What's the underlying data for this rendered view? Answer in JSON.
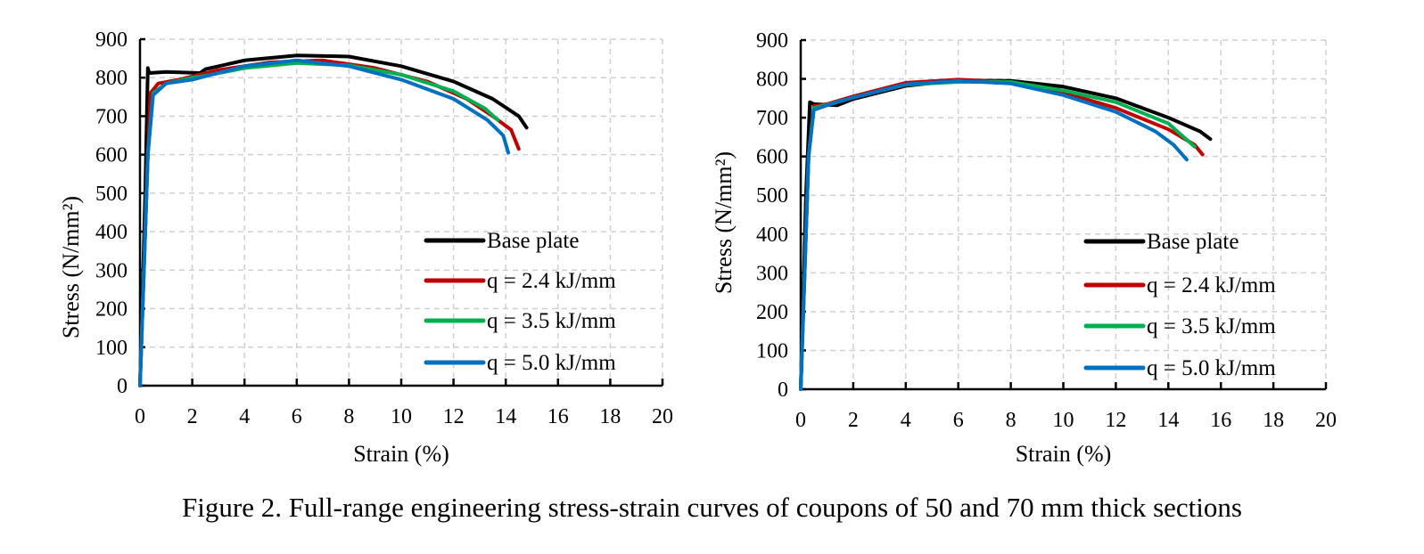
{
  "caption": "Figure 2. Full-range engineering stress-strain curves of coupons of 50 and 70 mm thick sections",
  "chart_data": [
    {
      "type": "line",
      "xlabel": "Strain (%)",
      "ylabel": "Stress (N/mm²)",
      "xlim": [
        0,
        20
      ],
      "ylim": [
        0,
        900
      ],
      "xticks": [
        "0",
        "2",
        "4",
        "6",
        "8",
        "10",
        "12",
        "14",
        "16",
        "18",
        "20"
      ],
      "yticks": [
        "0",
        "100",
        "200",
        "300",
        "400",
        "500",
        "600",
        "700",
        "800",
        "900"
      ],
      "grid": true,
      "legend_position": "bottom-right",
      "series": [
        {
          "name": "Base plate",
          "color": "#000000",
          "points": [
            [
              0,
              0
            ],
            [
              0.2,
              500
            ],
            [
              0.3,
              825
            ],
            [
              0.35,
              812
            ],
            [
              1,
              815
            ],
            [
              2.3,
              812
            ],
            [
              2.5,
              822
            ],
            [
              4,
              845
            ],
            [
              6,
              858
            ],
            [
              8,
              855
            ],
            [
              10,
              830
            ],
            [
              12,
              790
            ],
            [
              13.5,
              745
            ],
            [
              14.5,
              700
            ],
            [
              14.8,
              670
            ]
          ]
        },
        {
          "name": "q = 2.4 kJ/mm",
          "color": "#c00000",
          "points": [
            [
              0,
              0
            ],
            [
              0.3,
              600
            ],
            [
              0.4,
              760
            ],
            [
              0.7,
              785
            ],
            [
              1.5,
              795
            ],
            [
              3,
              820
            ],
            [
              5,
              840
            ],
            [
              7,
              845
            ],
            [
              9,
              825
            ],
            [
              11,
              790
            ],
            [
              12.5,
              745
            ],
            [
              13.5,
              700
            ],
            [
              14.2,
              665
            ],
            [
              14.5,
              615
            ]
          ]
        },
        {
          "name": "q = 3.5 kJ/mm",
          "color": "#00b050",
          "points": [
            [
              0,
              0
            ],
            [
              0.3,
              600
            ],
            [
              0.5,
              760
            ],
            [
              1,
              785
            ],
            [
              2,
              800
            ],
            [
              2.5,
              805
            ],
            [
              4,
              825
            ],
            [
              6,
              838
            ],
            [
              8,
              832
            ],
            [
              10,
              808
            ],
            [
              12,
              765
            ],
            [
              13.2,
              720
            ],
            [
              13.7,
              690
            ]
          ]
        },
        {
          "name": "q = 5.0 kJ/mm",
          "color": "#0070c0",
          "points": [
            [
              0,
              0
            ],
            [
              0.3,
              600
            ],
            [
              0.5,
              755
            ],
            [
              1,
              785
            ],
            [
              2,
              795
            ],
            [
              4,
              830
            ],
            [
              6,
              845
            ],
            [
              8,
              830
            ],
            [
              10,
              795
            ],
            [
              12,
              745
            ],
            [
              13.3,
              690
            ],
            [
              13.9,
              650
            ],
            [
              14.1,
              605
            ]
          ]
        }
      ]
    },
    {
      "type": "line",
      "xlabel": "Strain (%)",
      "ylabel": "Stress (N/mm²)",
      "xlim": [
        0,
        20
      ],
      "ylim": [
        0,
        900
      ],
      "xticks": [
        "0",
        "2",
        "4",
        "6",
        "8",
        "10",
        "12",
        "14",
        "16",
        "18",
        "20"
      ],
      "yticks": [
        "0",
        "100",
        "200",
        "300",
        "400",
        "500",
        "600",
        "700",
        "800",
        "900"
      ],
      "grid": true,
      "legend_position": "bottom-right",
      "series": [
        {
          "name": "Base plate",
          "color": "#000000",
          "points": [
            [
              0,
              0
            ],
            [
              0.2,
              500
            ],
            [
              0.35,
              740
            ],
            [
              0.5,
              735
            ],
            [
              1.4,
              732
            ],
            [
              2,
              748
            ],
            [
              4,
              782
            ],
            [
              6,
              796
            ],
            [
              8,
              795
            ],
            [
              10,
              780
            ],
            [
              12,
              750
            ],
            [
              14,
              700
            ],
            [
              15.2,
              665
            ],
            [
              15.6,
              645
            ]
          ]
        },
        {
          "name": "q = 2.4 kJ/mm",
          "color": "#c00000",
          "points": [
            [
              0,
              0
            ],
            [
              0.3,
              600
            ],
            [
              0.5,
              730
            ],
            [
              1,
              735
            ],
            [
              2,
              755
            ],
            [
              4,
              790
            ],
            [
              6,
              798
            ],
            [
              8,
              792
            ],
            [
              10,
              765
            ],
            [
              12,
              725
            ],
            [
              14,
              670
            ],
            [
              15,
              630
            ],
            [
              15.3,
              605
            ]
          ]
        },
        {
          "name": "q = 3.5 kJ/mm",
          "color": "#00b050",
          "points": [
            [
              0,
              0
            ],
            [
              0.3,
              600
            ],
            [
              0.5,
              725
            ],
            [
              1,
              733
            ],
            [
              2,
              752
            ],
            [
              4,
              785
            ],
            [
              6,
              792
            ],
            [
              8,
              792
            ],
            [
              10,
              770
            ],
            [
              12,
              740
            ],
            [
              14,
              685
            ],
            [
              15,
              625
            ]
          ]
        },
        {
          "name": "q = 5.0 kJ/mm",
          "color": "#0070c0",
          "points": [
            [
              0,
              0
            ],
            [
              0.3,
              600
            ],
            [
              0.5,
              720
            ],
            [
              1,
              732
            ],
            [
              2,
              752
            ],
            [
              4,
              786
            ],
            [
              6,
              795
            ],
            [
              8,
              788
            ],
            [
              10,
              758
            ],
            [
              12,
              715
            ],
            [
              13.5,
              665
            ],
            [
              14.2,
              630
            ],
            [
              14.7,
              592
            ]
          ]
        }
      ]
    }
  ]
}
